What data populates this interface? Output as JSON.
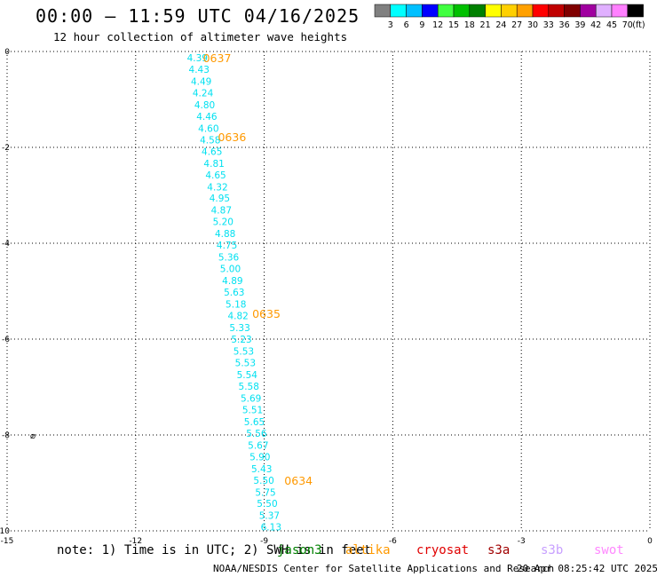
{
  "header": {
    "title": "00:00 – 11:59 UTC 04/16/2025",
    "subtitle": "12 hour collection of altimeter wave heights"
  },
  "colorbar": {
    "colors": [
      "#808080",
      "#00ffff",
      "#00c0ff",
      "#0000ff",
      "#40ff40",
      "#00c000",
      "#008000",
      "#ffff00",
      "#ffd000",
      "#ffa000",
      "#ff0000",
      "#c00000",
      "#800000",
      "#a000a0",
      "#e0b0ff",
      "#ff80ff",
      "#000000"
    ],
    "labels": [
      "3",
      "6",
      "9",
      "12",
      "15",
      "18",
      "21",
      "24",
      "27",
      "30",
      "33",
      "36",
      "39",
      "42",
      "45",
      "70"
    ],
    "unit": "(ft)"
  },
  "footer": {
    "note": "note: 1) Time is in UTC; 2) SWH is in feet",
    "credit": "NOAA/NESDIS Center for Satellite Applications and Research",
    "timestamp": "20 Apr 08:25:42 UTC 2025"
  },
  "satellites": [
    {
      "name": "jason3",
      "color": "#008000"
    },
    {
      "name": "altika",
      "color": "#ff9900"
    },
    {
      "name": "cryosat",
      "color": "#e00000"
    },
    {
      "name": "s3a",
      "color": "#a00000"
    },
    {
      "name": "s3b",
      "color": "#c8a0ff"
    },
    {
      "name": "swot",
      "color": "#ff88ff"
    }
  ],
  "chart_data": {
    "type": "scatter",
    "xlim": [
      -15,
      0
    ],
    "ylim": [
      -10,
      0
    ],
    "x_ticks": [
      -15,
      -12,
      -9,
      -6,
      -3,
      0
    ],
    "y_ticks": [
      0,
      -2,
      -4,
      -6,
      -8,
      -10
    ],
    "grid": true,
    "point_color": "#00e0f0",
    "pass_color": "#ff9900",
    "points": [
      {
        "x": -10.56,
        "y": -0.13,
        "v": "4.39"
      },
      {
        "x": -10.52,
        "y": -0.37,
        "v": "4.43"
      },
      {
        "x": -10.47,
        "y": -0.62,
        "v": "4.49"
      },
      {
        "x": -10.43,
        "y": -0.86,
        "v": "4.24"
      },
      {
        "x": -10.39,
        "y": -1.11,
        "v": "4.80"
      },
      {
        "x": -10.34,
        "y": -1.35,
        "v": "4.46"
      },
      {
        "x": -10.3,
        "y": -1.6,
        "v": "4.60"
      },
      {
        "x": -10.26,
        "y": -1.84,
        "v": "4.58"
      },
      {
        "x": -10.22,
        "y": -2.08,
        "v": "4.65"
      },
      {
        "x": -10.17,
        "y": -2.33,
        "v": "4.81"
      },
      {
        "x": -10.13,
        "y": -2.57,
        "v": "4.65"
      },
      {
        "x": -10.09,
        "y": -2.82,
        "v": "4.32"
      },
      {
        "x": -10.04,
        "y": -3.06,
        "v": "4.95"
      },
      {
        "x": -10.0,
        "y": -3.31,
        "v": "4.87"
      },
      {
        "x": -9.96,
        "y": -3.55,
        "v": "5.20"
      },
      {
        "x": -9.91,
        "y": -3.8,
        "v": "4.88"
      },
      {
        "x": -9.87,
        "y": -4.04,
        "v": "4.75"
      },
      {
        "x": -9.83,
        "y": -4.29,
        "v": "5.36"
      },
      {
        "x": -9.79,
        "y": -4.53,
        "v": "5.00"
      },
      {
        "x": -9.74,
        "y": -4.78,
        "v": "4.89"
      },
      {
        "x": -9.7,
        "y": -5.02,
        "v": "5.63"
      },
      {
        "x": -9.66,
        "y": -5.27,
        "v": "5.18"
      },
      {
        "x": -9.61,
        "y": -5.51,
        "v": "4.82"
      },
      {
        "x": -9.57,
        "y": -5.76,
        "v": "5.33"
      },
      {
        "x": -9.53,
        "y": -6.0,
        "v": "5.23"
      },
      {
        "x": -9.48,
        "y": -6.25,
        "v": "5.53"
      },
      {
        "x": -9.44,
        "y": -6.49,
        "v": "5.53"
      },
      {
        "x": -9.4,
        "y": -6.74,
        "v": "5.54"
      },
      {
        "x": -9.36,
        "y": -6.98,
        "v": "5.58"
      },
      {
        "x": -9.31,
        "y": -7.23,
        "v": "5.69"
      },
      {
        "x": -9.27,
        "y": -7.47,
        "v": "5.51"
      },
      {
        "x": -9.23,
        "y": -7.72,
        "v": "5.65"
      },
      {
        "x": -9.18,
        "y": -7.96,
        "v": "5.56"
      },
      {
        "x": -9.14,
        "y": -8.21,
        "v": "5.67"
      },
      {
        "x": -9.1,
        "y": -8.45,
        "v": "5.90"
      },
      {
        "x": -9.06,
        "y": -8.7,
        "v": "5.43"
      },
      {
        "x": -9.01,
        "y": -8.94,
        "v": "5.50"
      },
      {
        "x": -8.97,
        "y": -9.19,
        "v": "5.75"
      },
      {
        "x": -8.93,
        "y": -9.43,
        "v": "5.50"
      },
      {
        "x": -8.88,
        "y": -9.68,
        "v": "5.37"
      },
      {
        "x": -8.84,
        "y": -9.92,
        "v": "6.13"
      }
    ],
    "pass_labels": [
      {
        "x": -10.1,
        "y": -0.13,
        "v": "0637"
      },
      {
        "x": -9.75,
        "y": -1.78,
        "v": "0636"
      },
      {
        "x": -8.95,
        "y": -5.46,
        "v": "0635"
      },
      {
        "x": -8.2,
        "y": -8.94,
        "v": "0634"
      }
    ],
    "markers": [
      {
        "x": -14.4,
        "y": -8.0,
        "symbol": "⌀"
      }
    ]
  }
}
